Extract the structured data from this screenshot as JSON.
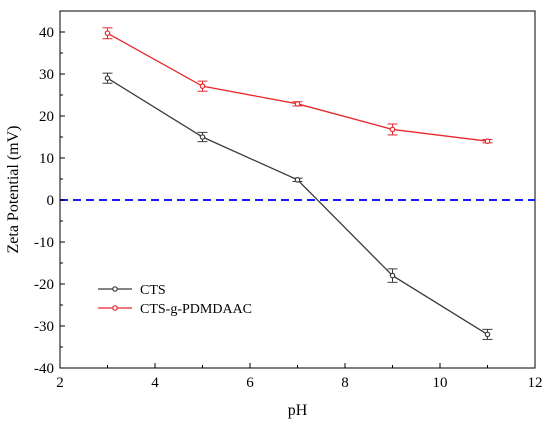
{
  "chart_data": {
    "type": "line",
    "title": "",
    "xlabel": "pH",
    "ylabel": "Zeta Potential (mV)",
    "xlim": [
      2,
      12
    ],
    "ylim": [
      -40,
      45
    ],
    "xticks": [
      2,
      4,
      6,
      8,
      10,
      12
    ],
    "yticks": [
      -40,
      -30,
      -20,
      -10,
      0,
      10,
      20,
      30,
      40
    ],
    "grid": false,
    "legend_position": "lower-left",
    "reference_line": {
      "y": 0,
      "style": "dashed",
      "color": "#1a1aff"
    },
    "series": [
      {
        "name": "CTS",
        "color": "#3a3a3a",
        "x": [
          3,
          5,
          7,
          9,
          11
        ],
        "y": [
          29,
          15,
          4.8,
          -18,
          -32
        ],
        "err": [
          1.2,
          1.1,
          0.4,
          1.6,
          1.2
        ]
      },
      {
        "name": "CTS-g-PDMDAAC",
        "color": "#e8282b",
        "x": [
          3,
          5,
          7,
          9,
          11
        ],
        "y": [
          39.7,
          27.1,
          22.9,
          16.8,
          14
        ],
        "err": [
          1.3,
          1.2,
          0.5,
          1.3,
          0.4
        ]
      }
    ]
  }
}
